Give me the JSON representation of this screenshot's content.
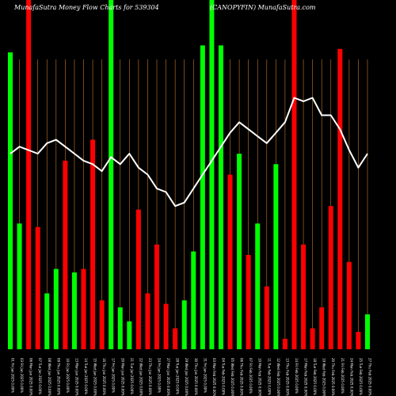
{
  "chart_data": {
    "type": "bar",
    "title_left": "MunafaSutra  Money Flow  Charts for 539304",
    "title_right": "(CANOPYFIN) MunafaSutra.com",
    "background": "#000000",
    "grid": true,
    "grid_color": "#c8782a",
    "line_color": "#ffffff",
    "ylim": [
      0,
      100
    ],
    "colors": {
      "up": "#00ff00",
      "down": "#ff0000"
    },
    "categories": [
      "01 Fri Jan 2025 0.00%",
      "03 Fri Jan 2025 0.00%",
      "06 Mon Jan 2025 0.00%",
      "07 Tue Jan 2025 0.00%",
      "08 Wed Jan 2025 0.00%",
      "09 Thu Jan 2025 0.00%",
      "10 Fri Jan 2025 0.00%",
      "13 Mon Jan 2025 0.00%",
      "14 Tue Jan 2025 0.00%",
      "15 Wed Jan 2025 0.00%",
      "16 Thu Jan 2025 0.00%",
      "17 Fri Jan 2025 0.00%",
      "20 Mon Jan 2025 0.00%",
      "21 Tue Jan 2025 0.00%",
      "22 Wed Jan 2025 0.00%",
      "23 Thu Jan 2025 0.00%",
      "24 Fri Jan 2025 0.00%",
      "27 Mon Jan 2025 0.00%",
      "28 Tue Jan 2025 0.00%",
      "29 Wed Jan 2025 0.00%",
      "30 Thu Jan 2025 0.00%",
      "31 Fri Jan 2025 0.00%",
      "03 Mon Feb 2025 0.00%",
      "04 Tue Feb 2025 0.00%",
      "05 Wed Feb 2025 0.00%",
      "06 Thu Feb 2025 0.00%",
      "07 Fri Feb 2025 0.00%",
      "10 Mon Feb 2025 0.00%",
      "11 Tue Feb 2025 0.00%",
      "12 Wed Feb 2025 0.00%",
      "13 Thu Feb 2025 0.00%",
      "14 Fri Feb 2025 0.00%",
      "17 Mon Feb 2025 0.00%",
      "18 Tue Feb 2025 0.00%",
      "19 Wed Feb 2025 0.00%",
      "20 Thu Feb 2025 0.00%",
      "21 Fri Feb 2025 0.00%",
      "24 Mon Feb 2025 0.00%",
      "25 Tue Feb 2025 0.00%",
      "27 Thu Feb 2025 0.00%"
    ],
    "values": [
      85,
      36,
      100,
      35,
      16,
      23,
      54,
      22,
      23,
      60,
      14,
      100,
      12,
      8,
      40,
      16,
      30,
      13,
      6,
      14,
      28,
      87,
      100,
      87,
      50,
      56,
      27,
      36,
      18,
      53,
      3,
      100,
      30,
      6,
      12,
      41,
      86,
      25,
      5,
      10
    ],
    "directions": [
      "up",
      "up",
      "down",
      "down",
      "up",
      "up",
      "down",
      "up",
      "down",
      "down",
      "down",
      "up",
      "up",
      "up",
      "down",
      "down",
      "down",
      "down",
      "down",
      "up",
      "up",
      "up",
      "up",
      "up",
      "down",
      "up",
      "down",
      "up",
      "down",
      "up",
      "down",
      "down",
      "down",
      "down",
      "down",
      "down",
      "down",
      "down",
      "down",
      "up"
    ],
    "money_flow_line": [
      56,
      58,
      57,
      56,
      59,
      60,
      58,
      56,
      54,
      53,
      51,
      55,
      53,
      56,
      52,
      50,
      46,
      45,
      41,
      42,
      46,
      50,
      54,
      58,
      62,
      65,
      63,
      61,
      59,
      62,
      65,
      72,
      71,
      72,
      67,
      67,
      63,
      57,
      52,
      56
    ]
  }
}
